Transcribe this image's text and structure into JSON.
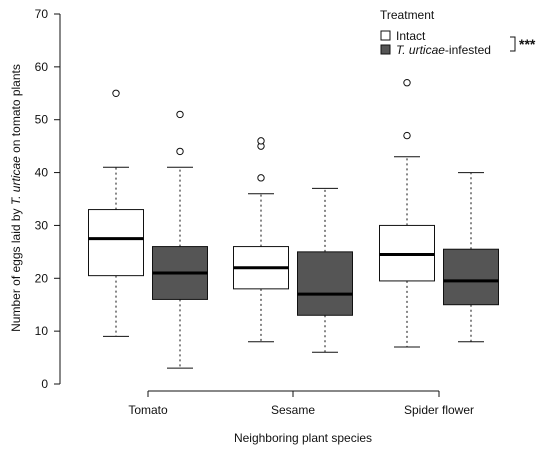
{
  "chart_data": {
    "type": "boxplot",
    "xlabel": "Neighboring plant species",
    "ylabel_prefix": "Number of eggs laid by ",
    "ylabel_species": "T. urticae",
    "ylabel_suffix": " on tomato plants",
    "ylim": [
      0,
      70
    ],
    "yticks": [
      0,
      10,
      20,
      30,
      40,
      50,
      60,
      70
    ],
    "categories": [
      "Tomato",
      "Sesame",
      "Spider flower"
    ],
    "legend": {
      "title": "Treatment",
      "placement": "top-right",
      "significance": "***"
    },
    "series": [
      {
        "name": "Intact",
        "name_prefix": "",
        "name_suffix": "Intact",
        "fill": "#ffffff",
        "boxes": [
          {
            "whisker_low": 9,
            "q1": 20.5,
            "median": 27.5,
            "q3": 33,
            "whisker_high": 41,
            "outliers": [
              55
            ]
          },
          {
            "whisker_low": 8,
            "q1": 18,
            "median": 22,
            "q3": 26,
            "whisker_high": 36,
            "outliers": [
              39,
              45,
              46
            ]
          },
          {
            "whisker_low": 7,
            "q1": 19.5,
            "median": 24.5,
            "q3": 30,
            "whisker_high": 43,
            "outliers": [
              47,
              57
            ]
          }
        ]
      },
      {
        "name": "T. urticae-infested",
        "name_prefix": "T. urticae",
        "name_suffix": "-infested",
        "fill": "#555555",
        "boxes": [
          {
            "whisker_low": 3,
            "q1": 16,
            "median": 21,
            "q3": 26,
            "whisker_high": 41,
            "outliers": [
              44,
              51
            ]
          },
          {
            "whisker_low": 6,
            "q1": 13,
            "median": 17,
            "q3": 25,
            "whisker_high": 37,
            "outliers": []
          },
          {
            "whisker_low": 8,
            "q1": 15,
            "median": 19.5,
            "q3": 25.5,
            "whisker_high": 40,
            "outliers": []
          }
        ]
      }
    ]
  }
}
